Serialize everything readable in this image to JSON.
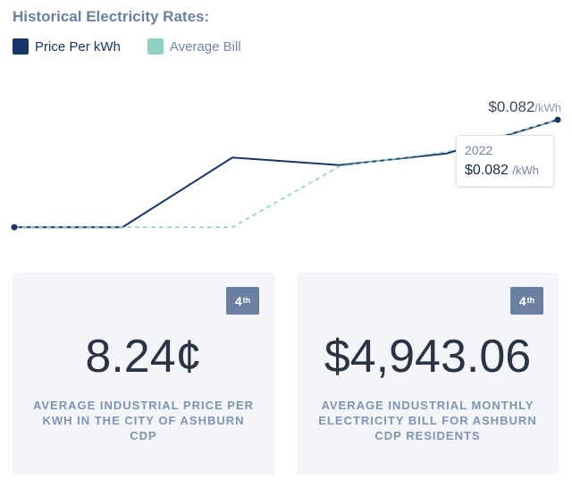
{
  "header": {
    "title": "Historical Electricity Rates:"
  },
  "legend": [
    {
      "label": "Price Per kWh",
      "color": "#16366b"
    },
    {
      "label": "Average Bill",
      "color": "#8fd0c2"
    }
  ],
  "chart_data": {
    "type": "line",
    "title": "Historical Electricity Rates:",
    "x": [
      "",
      "",
      "",
      "",
      "",
      "2022"
    ],
    "series": [
      {
        "name": "Price Per kWh",
        "color": "#16366b",
        "style": "solid",
        "values": [
          0.0635,
          0.0635,
          0.0755,
          0.0742,
          0.0762,
          0.082
        ]
      },
      {
        "name": "Average Bill",
        "color": "#8fd0c2",
        "style": "dashed",
        "values": [
          0.0635,
          0.0635,
          0.0635,
          0.074,
          0.0765,
          0.082
        ]
      }
    ],
    "ylim": [
      0.058,
      0.088
    ],
    "grid": false,
    "legend_position": "top-left",
    "end_label": {
      "value": "$0.082",
      "unit": "/kWh"
    }
  },
  "tooltip": {
    "year": "2022",
    "value": "$0.082",
    "unit": "/kWh"
  },
  "cards": [
    {
      "rank": "4",
      "rank_suffix": "th",
      "value": "8.24¢",
      "caption": "Average Industrial Price per kWh in the City of Ashburn CDP"
    },
    {
      "rank": "4",
      "rank_suffix": "th",
      "value": "$4,943.06",
      "caption": "Average Industrial Monthly Electricity Bill for Ashburn CDP Residents"
    }
  ]
}
